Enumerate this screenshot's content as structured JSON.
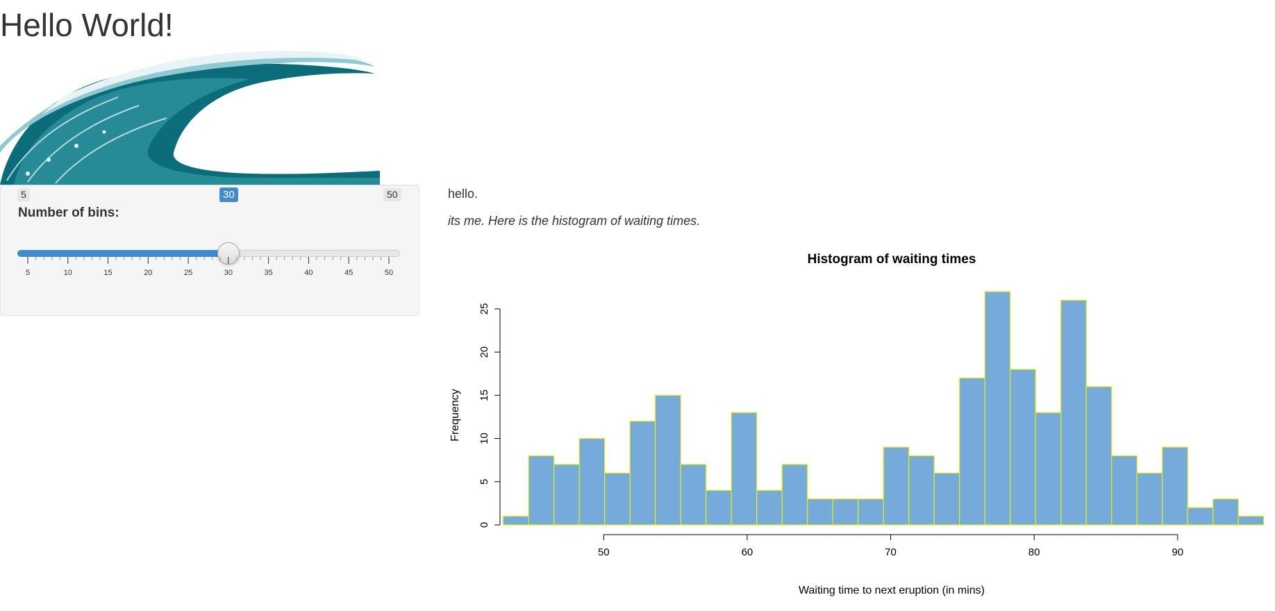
{
  "page": {
    "title": "Hello World!"
  },
  "image": {
    "alt": "wave illustration",
    "colors": {
      "deep": "#0b6c7a",
      "mid": "#2c8f9c",
      "light": "#8fc9d2",
      "foam": "#e8f3f5"
    }
  },
  "sidebar": {
    "label": "Number of bins:",
    "slider": {
      "min_label": "5",
      "max_label": "50",
      "value_label": "30",
      "min": 5,
      "max": 50,
      "value": 30,
      "major_ticks": [
        "5",
        "10",
        "15",
        "20",
        "25",
        "30",
        "35",
        "40",
        "45",
        "50"
      ],
      "accent_color": "#428bca"
    }
  },
  "main": {
    "hello": "hello.",
    "message": "its me. Here is the histogram of waiting times."
  },
  "chart_data": {
    "type": "bar",
    "title": "Histogram of waiting times",
    "xlabel": "Waiting time to next eruption (in mins)",
    "ylabel": "Frequency",
    "bar_color": "#75aadb",
    "bar_border": "#e5f000",
    "x_ticks": [
      "50",
      "60",
      "70",
      "80",
      "90"
    ],
    "y_ticks": [
      "0",
      "5",
      "10",
      "15",
      "20",
      "25"
    ],
    "xlim": [
      40.5,
      96.4
    ],
    "ylim": [
      0,
      27
    ],
    "bin_start": 43,
    "bin_width": 1.7667,
    "values": [
      1,
      8,
      7,
      10,
      6,
      12,
      15,
      7,
      4,
      13,
      4,
      7,
      3,
      3,
      3,
      9,
      8,
      6,
      17,
      27,
      18,
      13,
      26,
      16,
      8,
      6,
      9,
      2,
      3,
      1
    ]
  }
}
